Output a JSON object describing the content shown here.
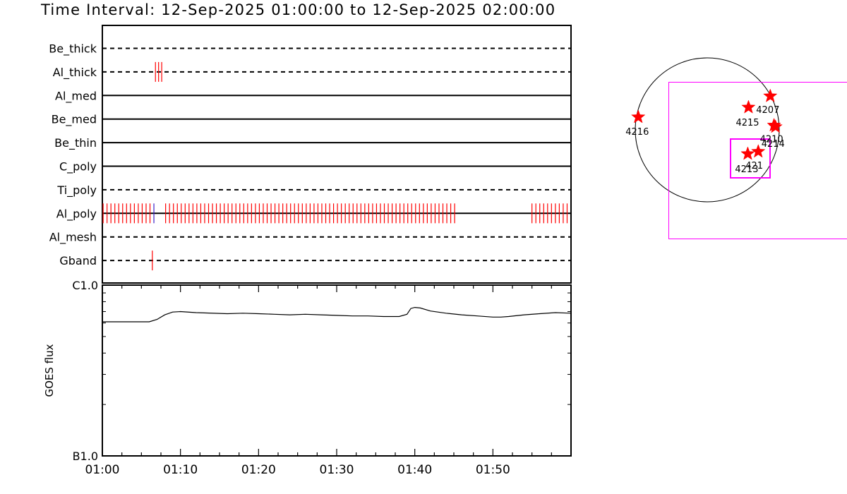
{
  "title": "Time Interval: 12-Sep-2025 01:00:00 to 12-Sep-2025 02:00:00",
  "chart_data": [
    {
      "type": "event-timeline",
      "x_range": [
        "01:00",
        "02:00"
      ],
      "channels": [
        {
          "name": "Be_thick",
          "style": "dashed",
          "events": []
        },
        {
          "name": "Al_thick",
          "style": "dashed",
          "events": [
            {
              "t": 6.8,
              "color": "#ff0000"
            },
            {
              "t": 7.2,
              "color": "#ff0000"
            },
            {
              "t": 7.6,
              "color": "#ff0000"
            }
          ]
        },
        {
          "name": "Al_med",
          "style": "solid",
          "events": []
        },
        {
          "name": "Be_med",
          "style": "solid",
          "events": []
        },
        {
          "name": "Be_thin",
          "style": "solid",
          "events": []
        },
        {
          "name": "C_poly",
          "style": "solid",
          "events": []
        },
        {
          "name": "Ti_poly",
          "style": "dashed",
          "events": []
        },
        {
          "name": "Al_poly",
          "style": "solid",
          "event_ranges": [
            {
              "from": 0.1,
              "to": 6.5,
              "step": 0.5,
              "color": "#ff0000"
            },
            {
              "from": 8.1,
              "to": 45.5,
              "step": 0.5,
              "color": "#ff0000"
            },
            {
              "from": 55.0,
              "to": 59.5,
              "step": 0.5,
              "color": "#ff0000"
            }
          ],
          "events": [
            {
              "t": 6.6,
              "color": "#3b20c8"
            }
          ]
        },
        {
          "name": "Al_mesh",
          "style": "dashed",
          "events": []
        },
        {
          "name": "Gband",
          "style": "dashed",
          "events": [
            {
              "t": 6.4,
              "color": "#ff0000"
            }
          ]
        }
      ]
    },
    {
      "type": "line",
      "ylabel": "GOES flux",
      "ytick_labels": [
        "C1.0",
        "B1.0"
      ],
      "y_scale": "log",
      "ylim": [
        1e-07,
        1e-06
      ],
      "xtick_labels": [
        "01:00",
        "01:10",
        "01:20",
        "01:30",
        "01:40",
        "01:50"
      ],
      "xtick_minutes": [
        0,
        10,
        20,
        30,
        40,
        50
      ],
      "x_range_minutes": [
        0,
        60
      ],
      "series": [
        {
          "x": [
            0,
            6,
            7,
            8,
            9,
            10,
            12,
            16,
            18,
            20,
            22,
            24,
            26,
            28,
            30,
            32,
            34,
            36,
            38,
            39,
            39.5,
            40,
            40.7,
            42,
            44,
            46,
            48,
            50,
            51,
            52,
            54,
            56,
            58,
            60
          ],
          "y": [
            6.1e-07,
            6.1e-07,
            6.3e-07,
            6.7e-07,
            6.95e-07,
            7e-07,
            6.9e-07,
            6.8e-07,
            6.85e-07,
            6.8e-07,
            6.75e-07,
            6.7e-07,
            6.75e-07,
            6.7e-07,
            6.65e-07,
            6.6e-07,
            6.6e-07,
            6.55e-07,
            6.55e-07,
            6.75e-07,
            7.3e-07,
            7.4e-07,
            7.35e-07,
            7.05e-07,
            6.85e-07,
            6.7e-07,
            6.6e-07,
            6.5e-07,
            6.5e-07,
            6.55e-07,
            6.7e-07,
            6.8e-07,
            6.9e-07,
            6.85e-07
          ]
        }
      ]
    },
    {
      "type": "scatter",
      "name": "solar-disk-map",
      "points": [
        {
          "label": "4216",
          "x": -920,
          "y": 170
        },
        {
          "label": "4215",
          "x": 550,
          "y": 300
        },
        {
          "label": "4207",
          "x": 840,
          "y": 450
        },
        {
          "label": "4210",
          "x": 890,
          "y": 60
        },
        {
          "label": "4214",
          "x": 910,
          "y": 40
        },
        {
          "label": "4213",
          "x": 540,
          "y": -320
        },
        {
          "label": "421",
          "x": 680,
          "y": -290
        }
      ]
    }
  ]
}
